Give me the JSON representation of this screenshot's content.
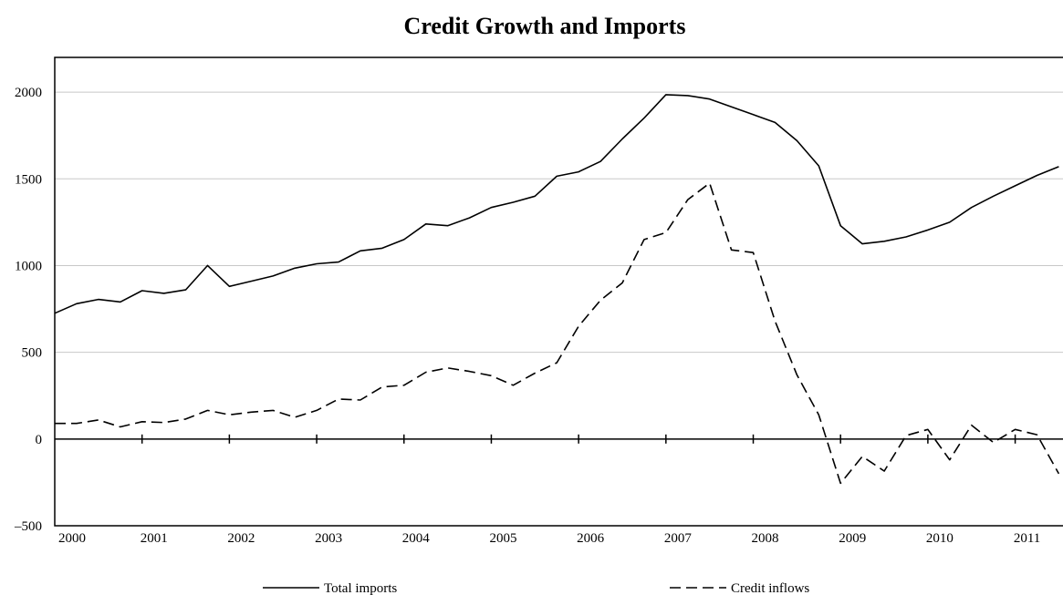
{
  "chart_data": {
    "type": "line",
    "title": "Credit Growth and Imports",
    "xlabel": "",
    "ylabel": "",
    "ylim": [
      -500,
      2200
    ],
    "xlim": [
      2000,
      2011.6
    ],
    "yticks": [
      -500,
      0,
      500,
      1000,
      1500,
      2000
    ],
    "ytick_labels": [
      "–500",
      "0",
      "500",
      "1000",
      "1500",
      "2000"
    ],
    "xticks": [
      2000,
      2001,
      2002,
      2003,
      2004,
      2005,
      2006,
      2007,
      2008,
      2009,
      2010,
      2011
    ],
    "xtick_labels": [
      "2000",
      "2001",
      "2002",
      "2003",
      "2004",
      "2005",
      "2006",
      "2007",
      "2008",
      "2009",
      "2010",
      "2011"
    ],
    "grid": "horizontal",
    "legend": "bottom",
    "series": [
      {
        "name": "Total imports",
        "style": "solid",
        "color": "#000000",
        "x": [
          2000.0,
          2000.25,
          2000.5,
          2000.75,
          2001.0,
          2001.25,
          2001.5,
          2001.75,
          2002.0,
          2002.25,
          2002.5,
          2002.75,
          2003.0,
          2003.25,
          2003.5,
          2003.75,
          2004.0,
          2004.25,
          2004.5,
          2004.75,
          2005.0,
          2005.25,
          2005.5,
          2005.75,
          2006.0,
          2006.25,
          2006.5,
          2006.75,
          2007.0,
          2007.25,
          2007.5,
          2007.75,
          2008.0,
          2008.25,
          2008.5,
          2008.75,
          2009.0,
          2009.25,
          2009.5,
          2009.75,
          2010.0,
          2010.25,
          2010.5,
          2010.75,
          2011.0,
          2011.25,
          2011.5
        ],
        "y": [
          725,
          780,
          805,
          790,
          855,
          840,
          860,
          1000,
          880,
          910,
          940,
          985,
          1010,
          1020,
          1085,
          1100,
          1150,
          1240,
          1230,
          1275,
          1335,
          1365,
          1400,
          1515,
          1540,
          1600,
          1730,
          1850,
          1985,
          1980,
          1960,
          1915,
          1870,
          1825,
          1720,
          1575,
          1230,
          1125,
          1140,
          1165,
          1205,
          1250,
          1335,
          1400,
          1460,
          1520,
          1570
        ]
      },
      {
        "name": "Credit inflows",
        "style": "dashed",
        "color": "#000000",
        "x": [
          2000.0,
          2000.25,
          2000.5,
          2000.75,
          2001.0,
          2001.25,
          2001.5,
          2001.75,
          2002.0,
          2002.25,
          2002.5,
          2002.75,
          2003.0,
          2003.25,
          2003.5,
          2003.75,
          2004.0,
          2004.25,
          2004.5,
          2004.75,
          2005.0,
          2005.25,
          2005.5,
          2005.75,
          2006.0,
          2006.25,
          2006.5,
          2006.75,
          2007.0,
          2007.25,
          2007.5,
          2007.75,
          2008.0,
          2008.25,
          2008.5,
          2008.75,
          2009.0,
          2009.25,
          2009.5,
          2009.75,
          2010.0,
          2010.25,
          2010.5,
          2010.75,
          2011.0,
          2011.25,
          2011.5
        ],
        "y": [
          90,
          90,
          110,
          70,
          100,
          95,
          115,
          165,
          140,
          155,
          165,
          125,
          165,
          230,
          225,
          300,
          310,
          385,
          410,
          390,
          365,
          310,
          380,
          440,
          650,
          800,
          900,
          1150,
          1190,
          1380,
          1475,
          1090,
          1075,
          680,
          370,
          140,
          -255,
          -100,
          -185,
          20,
          55,
          -120,
          80,
          -20,
          55,
          25,
          -200
        ]
      }
    ]
  }
}
